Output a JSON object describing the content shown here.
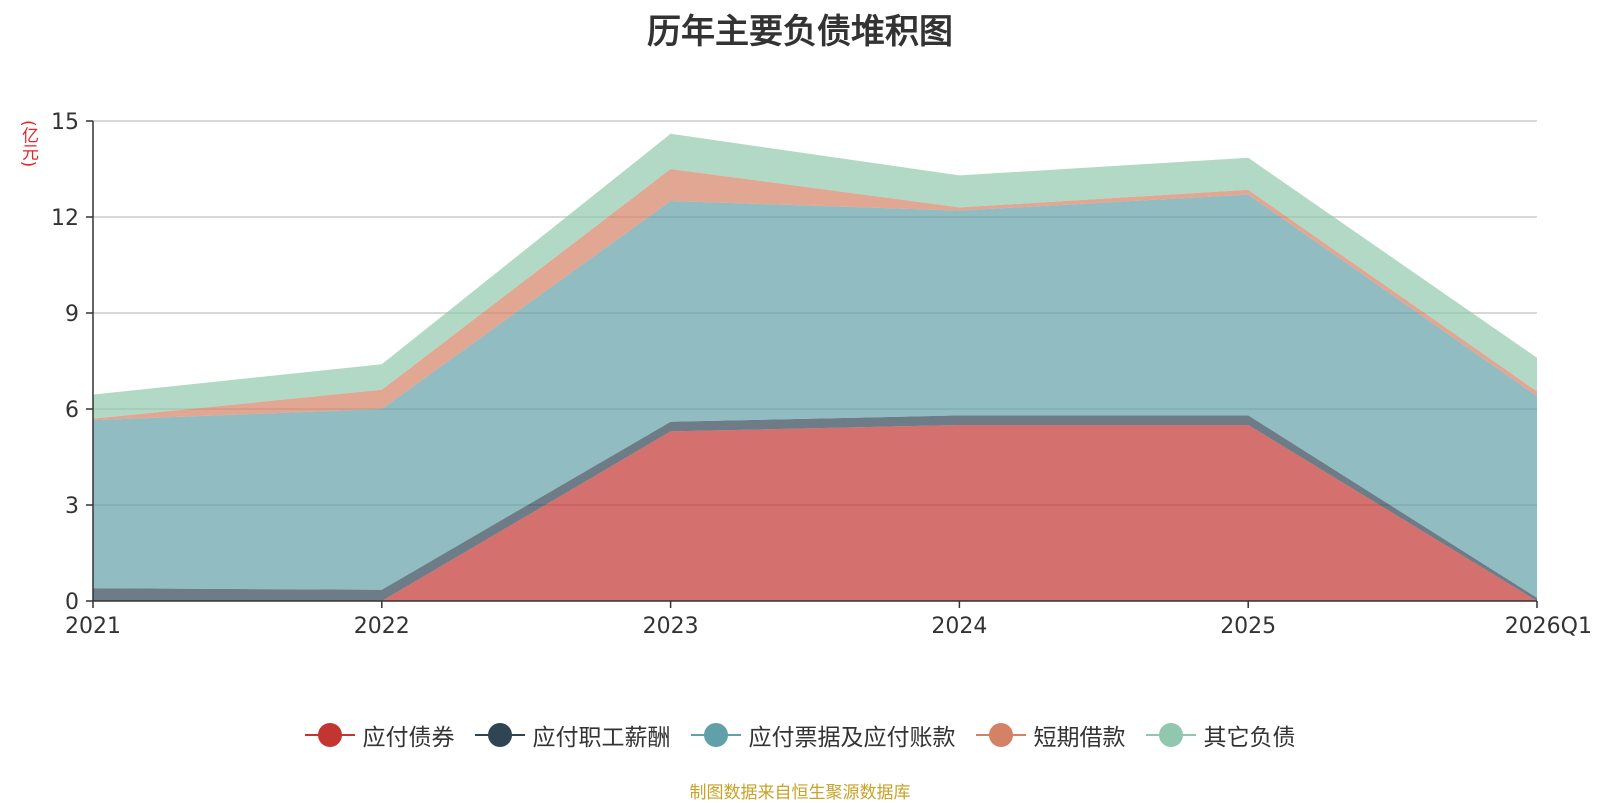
{
  "chart_data": {
    "type": "area",
    "stacked": true,
    "title": "历年主要负债堆积图",
    "unit_label": "(亿元)",
    "categories": [
      "2021",
      "2022",
      "2023",
      "2024",
      "2025",
      "2026Q1"
    ],
    "y_ticks": [
      "0",
      "3",
      "6",
      "9",
      "12",
      "15"
    ],
    "ylim": [
      0,
      15
    ],
    "grid": true,
    "legend_position": "bottom",
    "series": [
      {
        "name": "应付债券",
        "color": "#c23531",
        "values": [
          0.0,
          0.0,
          5.3,
          5.5,
          5.5,
          0.0
        ]
      },
      {
        "name": "应付职工薪酬",
        "color": "#2f4554",
        "values": [
          0.4,
          0.35,
          0.3,
          0.3,
          0.3,
          0.1
        ]
      },
      {
        "name": "应付票据及应付账款",
        "color": "#61a0a8",
        "values": [
          5.25,
          5.65,
          6.9,
          6.4,
          6.9,
          6.3
        ]
      },
      {
        "name": "短期借款",
        "color": "#d48265",
        "values": [
          0.05,
          0.6,
          1.0,
          0.1,
          0.15,
          0.15
        ]
      },
      {
        "name": "其它负债",
        "color": "#91c7ae",
        "values": [
          0.75,
          0.8,
          1.1,
          1.0,
          1.0,
          1.05
        ]
      }
    ]
  },
  "footer": {
    "source_note": "制图数据来自恒生聚源数据库"
  }
}
